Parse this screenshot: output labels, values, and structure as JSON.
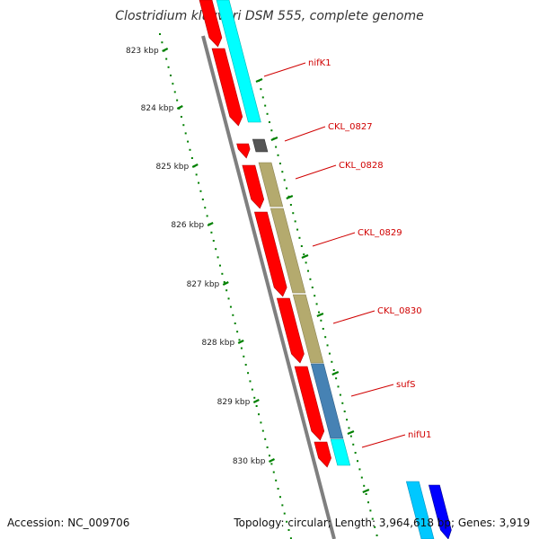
{
  "title": "Clostridium kluyveri DSM 555, complete genome",
  "footer": {
    "accession": "Accession: NC_009706",
    "summary": "Topology: circular; Length: 3,964,618 bp; Genes: 3,919"
  },
  "ruler_labels": [
    "823 kbp",
    "824 kbp",
    "825 kbp",
    "826 kbp",
    "827 kbp",
    "828 kbp",
    "829 kbp",
    "830 kbp"
  ],
  "gene_labels": [
    "nifK1",
    "CKL_0827",
    "CKL_0828",
    "CKL_0829",
    "CKL_0830",
    "sufS",
    "nifU1"
  ],
  "colors": {
    "cds": "#ff0000",
    "gene": "#00ffff",
    "other": "#b4aa6e",
    "sufS": "#4682b4",
    "dark": "#555555",
    "blue": "#0000ff",
    "backbone": "#7f7f7f",
    "ruler": "#008000",
    "label": "#d00000"
  }
}
